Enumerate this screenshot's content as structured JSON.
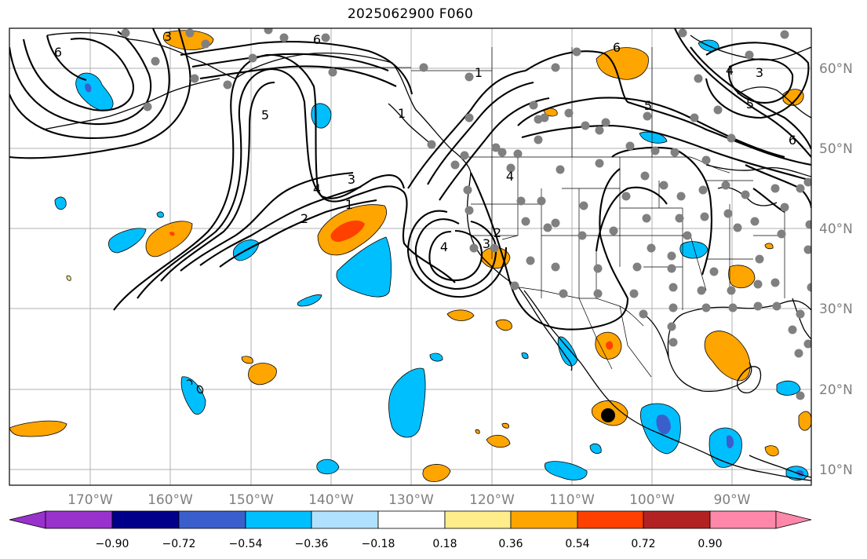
{
  "title": "2025062900 F060",
  "map": {
    "lon_labels": [
      "170°W",
      "160°W",
      "150°W",
      "140°W",
      "130°W",
      "120°W",
      "110°W",
      "100°W",
      "90°W"
    ],
    "lat_labels": [
      "60°N",
      "50°N",
      "40°N",
      "30°N",
      "20°N",
      "10°N"
    ],
    "contour_labels": [
      "6",
      "3",
      "4",
      "6",
      "5",
      "2",
      "4",
      "3",
      "1",
      "1",
      "2",
      "3",
      "4",
      "5",
      "6",
      "3",
      "4",
      "5",
      "6",
      "1"
    ],
    "colors": {
      "orange": "#ffa500",
      "red": "#ff4000",
      "cyan": "#00bfff",
      "blue": "#3a5fcd",
      "station": "#808080"
    }
  },
  "colorbar": {
    "ticks": [
      "−0.90",
      "−0.72",
      "−0.54",
      "−0.36",
      "−0.18",
      "0.18",
      "0.36",
      "0.54",
      "0.72",
      "0.90"
    ],
    "colors": [
      "#9932cc",
      "#00008b",
      "#3a5fcd",
      "#00bfff",
      "#b0e2ff",
      "#ffffff",
      "#ffec8b",
      "#ffa500",
      "#ff4000",
      "#b22222",
      "#ff88aa"
    ]
  }
}
